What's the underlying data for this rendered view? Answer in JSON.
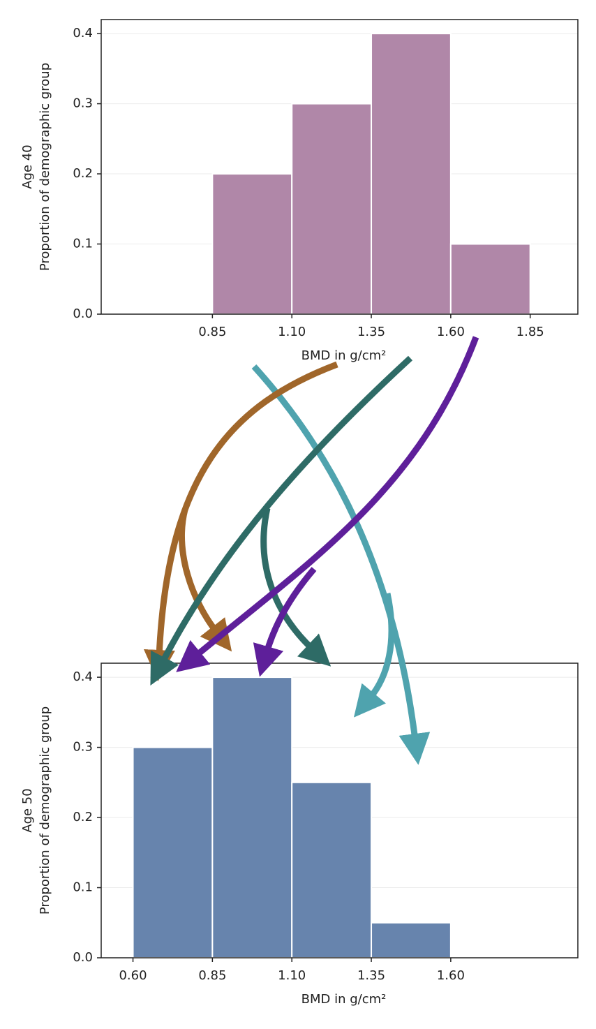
{
  "chart_data": [
    {
      "type": "histogram",
      "ylabel": [
        "Age 40",
        "Proportion of demographic group"
      ],
      "xlabel": "BMD in g/cm²",
      "bins": [
        0.85,
        1.1,
        1.35,
        1.6,
        1.85
      ],
      "values": [
        0.2,
        0.3,
        0.4,
        0.1
      ],
      "color": "#b087a8",
      "xlim": [
        0.5,
        2.0
      ],
      "xticks": [
        0.85,
        {
          "value": 1.1,
          "label": "1.10"
        },
        1.35,
        {
          "value": 1.6,
          "label": "1.60"
        },
        1.85
      ],
      "ylim": [
        0,
        0.42
      ],
      "yticks": [
        {
          "value": 0,
          "label": "0.0"
        },
        0.1,
        0.2,
        0.3,
        0.4
      ],
      "grid": true
    },
    {
      "type": "histogram",
      "ylabel": [
        "Age 50",
        "Proportion of demographic group"
      ],
      "xlabel": "BMD in g/cm²",
      "bins": [
        0.6,
        0.85,
        1.1,
        1.35,
        1.6
      ],
      "values": [
        0.3,
        0.4,
        0.25,
        0.05
      ],
      "color": "#6784ad",
      "xlim": [
        0.5,
        2.0
      ],
      "xticks": [
        {
          "value": 0.6,
          "label": "0.60"
        },
        0.85,
        {
          "value": 1.1,
          "label": "1.10"
        },
        1.35,
        {
          "value": 1.6,
          "label": "1.60"
        }
      ],
      "ylim": [
        0,
        0.42
      ],
      "yticks": [
        {
          "value": 0,
          "label": "0.0"
        },
        0.1,
        0.2,
        0.3,
        0.4
      ],
      "grid": true
    }
  ]
}
